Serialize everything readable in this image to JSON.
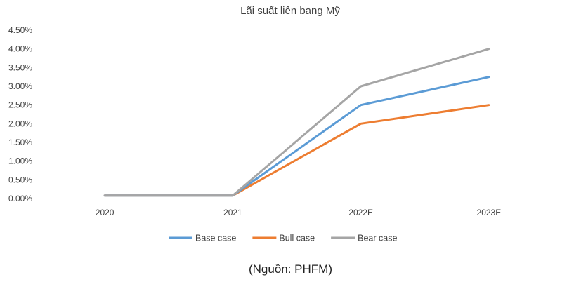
{
  "chart_data": {
    "type": "line",
    "title": "Lãi suất liên bang Mỹ",
    "categories": [
      "2020",
      "2021",
      "2022E",
      "2023E"
    ],
    "series": [
      {
        "name": "Base case",
        "values": [
          0.0008,
          0.0008,
          0.025,
          0.0325
        ],
        "color": "#5B9BD5"
      },
      {
        "name": "Bull case",
        "values": [
          0.0008,
          0.0008,
          0.02,
          0.025
        ],
        "color": "#ED7D31"
      },
      {
        "name": "Bear case",
        "values": [
          0.0008,
          0.0008,
          0.03,
          0.04
        ],
        "color": "#A5A5A5"
      }
    ],
    "yticks": [
      "0.00%",
      "0.50%",
      "1.00%",
      "1.50%",
      "2.00%",
      "2.50%",
      "3.00%",
      "3.50%",
      "4.00%",
      "4.50%"
    ],
    "ylim": [
      0,
      0.045
    ],
    "legend": "bottom",
    "grid": false
  },
  "source_note": "(Nguồn: PHFM)"
}
